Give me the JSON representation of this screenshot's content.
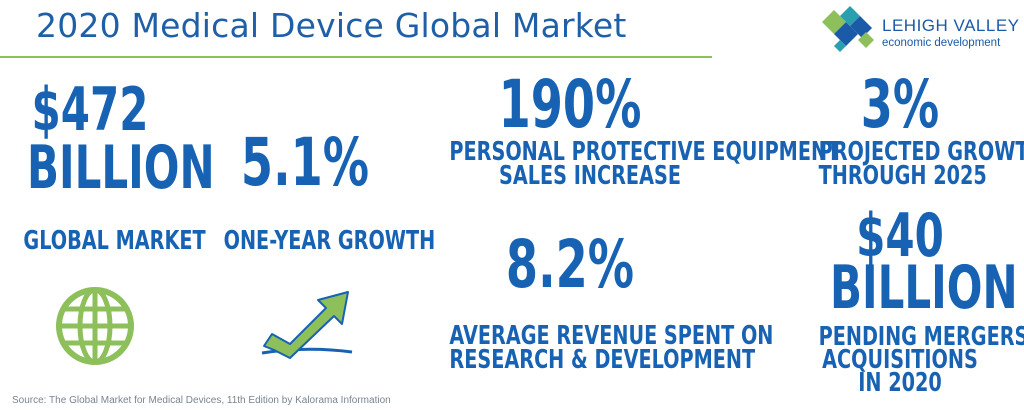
{
  "header": {
    "title": "2020 Medical Device Global Market"
  },
  "logo": {
    "name": "LEHIGH VALLEY",
    "tagline": "economic development"
  },
  "stats": {
    "global_market": {
      "value_line1": "$472",
      "value_line2": "BILLION",
      "label": "GLOBAL MARKET"
    },
    "one_year_growth": {
      "value": "5.1%",
      "label": "ONE-YEAR GROWTH"
    },
    "ppe_sales": {
      "value": "190%",
      "label_line1": "PERSONAL PROTECTIVE EQUIPMENT",
      "label_line2": "SALES INCREASE"
    },
    "projected_growth": {
      "value": "3%",
      "label_line1": "PROJECTED GROWTH",
      "label_line2": "THROUGH 2025"
    },
    "rd_spend": {
      "value": "8.2%",
      "label_line1": "AVERAGE REVENUE SPENT ON",
      "label_line2": "RESEARCH & DEVELOPMENT"
    },
    "mergers": {
      "value_line1": "$40",
      "value_line2": "BILLION",
      "label_line1": "PENDING MERGERS &",
      "label_line2": "ACQUISITIONS",
      "label_line3": "IN 2020"
    }
  },
  "icons": {
    "globe": "globe-icon",
    "growth": "growth-arrow-icon"
  },
  "colors": {
    "accent_blue": "#1762b3",
    "accent_green": "#8dc05a",
    "title_blue": "#1f5fa8"
  },
  "source": "Source: The Global Market for Medical Devices, 11th Edition by Kalorama Information"
}
